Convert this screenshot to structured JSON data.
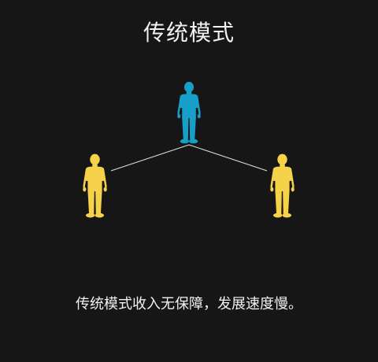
{
  "diagram": {
    "title": "传统模式",
    "caption": "传统模式收入无保障，发展速度慢。",
    "colors": {
      "background": "#161616",
      "text": "#f2f2f2",
      "center_person": "#16a0c9",
      "side_person": "#f6d24a",
      "connector": "#e0e0e0"
    },
    "nodes": [
      {
        "id": "center",
        "role": "center",
        "icon": "person-icon"
      },
      {
        "id": "left",
        "role": "side",
        "icon": "person-icon"
      },
      {
        "id": "right",
        "role": "side",
        "icon": "person-icon"
      }
    ],
    "edges": [
      {
        "from": "center",
        "to": "left"
      },
      {
        "from": "center",
        "to": "right"
      }
    ]
  }
}
